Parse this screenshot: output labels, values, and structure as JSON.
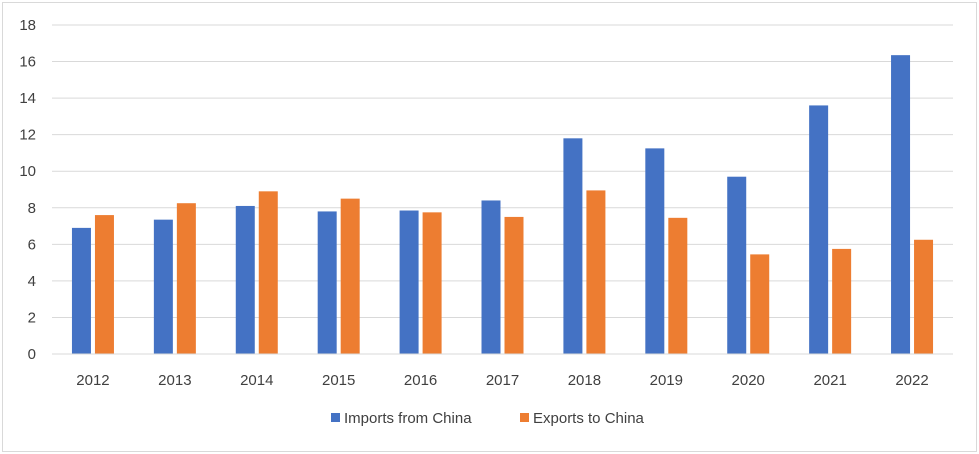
{
  "chart_data": {
    "type": "bar",
    "title": "",
    "xlabel": "",
    "ylabel": "",
    "categories": [
      "2012",
      "2013",
      "2014",
      "2015",
      "2016",
      "2017",
      "2018",
      "2019",
      "2020",
      "2021",
      "2022"
    ],
    "series": [
      {
        "name": "Imports from China",
        "color": "#4472c4",
        "values": [
          6.9,
          7.35,
          8.1,
          7.8,
          7.85,
          8.4,
          11.8,
          11.25,
          9.7,
          13.6,
          16.35
        ]
      },
      {
        "name": "Exports to China",
        "color": "#ed7d31",
        "values": [
          7.6,
          8.25,
          8.9,
          8.5,
          7.75,
          7.5,
          8.95,
          7.45,
          5.45,
          5.75,
          6.25
        ]
      }
    ],
    "ylim": [
      0,
      18
    ],
    "yticks": [
      "0",
      "2",
      "4",
      "6",
      "8",
      "10",
      "12",
      "14",
      "16",
      "18"
    ],
    "grid": true,
    "legend_position": "bottom"
  }
}
